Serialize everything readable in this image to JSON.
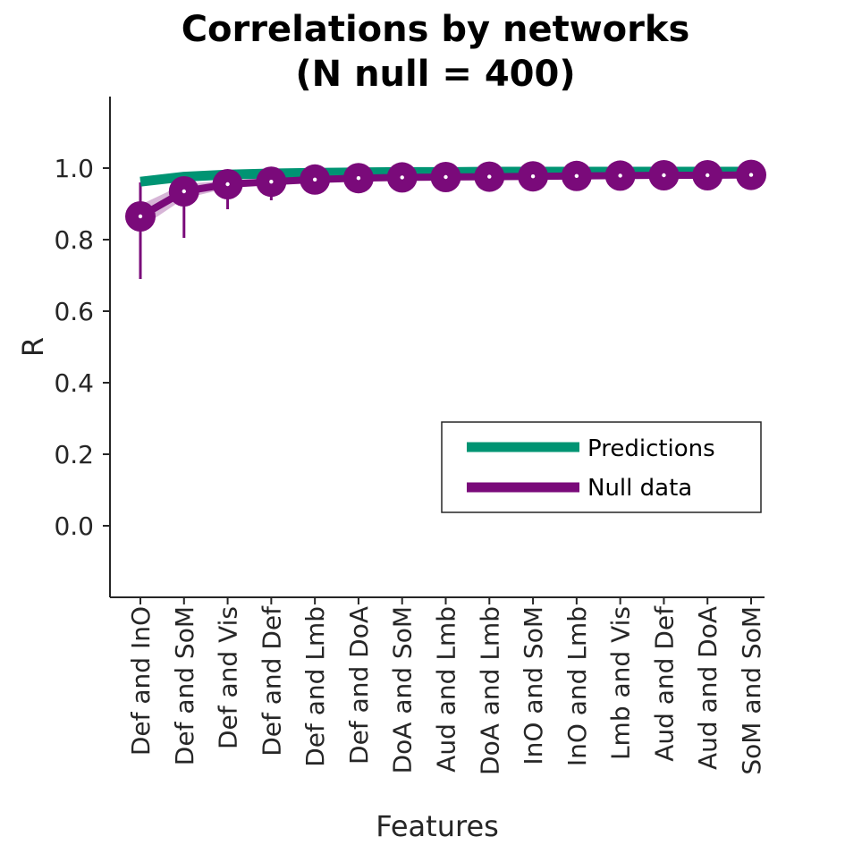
{
  "chart_data": {
    "type": "line",
    "title": "Correlations by networks",
    "subtitle": "(N null = 400)",
    "xlabel": "Features",
    "ylabel": "R",
    "ylim": [
      -0.2,
      1.2
    ],
    "yticks": [
      0.0,
      0.2,
      0.4,
      0.6,
      0.8,
      1.0
    ],
    "ytick_labels": [
      "0.0",
      "0.2",
      "0.4",
      "0.6",
      "0.8",
      "1.0"
    ],
    "grid": false,
    "legend_position": "lower-right",
    "categories": [
      "Def and InO",
      "Def and SoM",
      "Def and Vis",
      "Def and Def",
      "Def and Lmb",
      "Def and DoA",
      "DoA and SoM",
      "Aud and Lmb",
      "DoA and Lmb",
      "InO and SoM",
      "InO and Lmb",
      "Lmb and Vis",
      "Aud and Def",
      "Aud and DoA",
      "SoM and SoM"
    ],
    "series": [
      {
        "name": "Predictions",
        "color": "#009473",
        "values": [
          0.962,
          0.976,
          0.982,
          0.985,
          0.987,
          0.988,
          0.989,
          0.989,
          0.99,
          0.99,
          0.99,
          0.99,
          0.99,
          0.99,
          0.99
        ]
      },
      {
        "name": "Null data",
        "color": "#7a0a7a",
        "values": [
          0.865,
          0.935,
          0.955,
          0.962,
          0.968,
          0.972,
          0.974,
          0.975,
          0.976,
          0.977,
          0.978,
          0.979,
          0.98,
          0.98,
          0.981
        ],
        "lower": [
          0.69,
          0.805,
          0.885,
          0.91,
          0.945,
          0.955,
          0.962,
          0.965,
          0.966,
          0.968,
          0.97,
          0.972,
          0.973,
          0.974,
          0.975
        ],
        "upper": [
          0.96,
          0.975,
          0.975,
          0.975,
          0.978,
          0.98,
          0.981,
          0.982,
          0.982,
          0.983,
          0.984,
          0.984,
          0.985,
          0.985,
          0.985
        ]
      }
    ]
  }
}
